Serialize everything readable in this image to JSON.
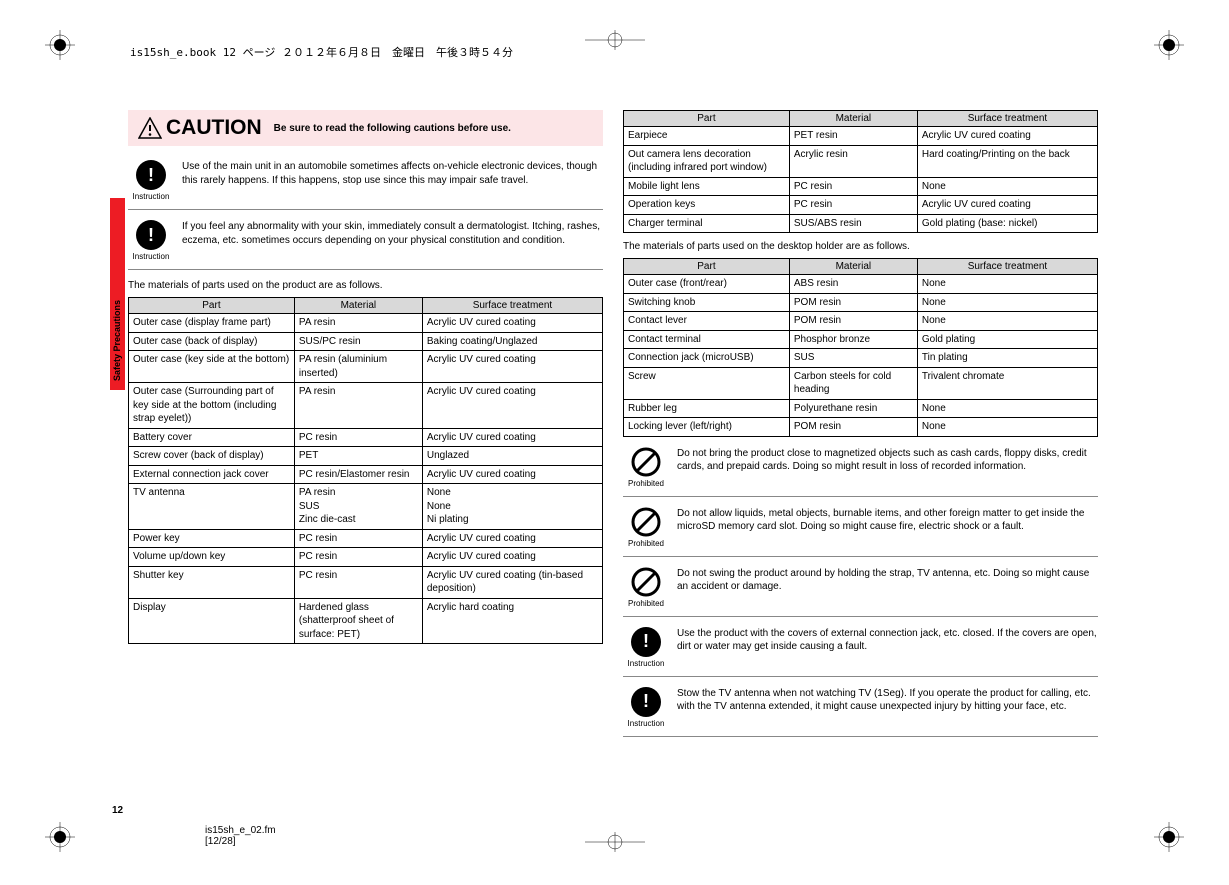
{
  "header_line": "is15sh_e.book  12 ページ  ２０１２年６月８日　金曜日　午後３時５４分",
  "side_tab_text": "Safety Precautions",
  "page_number": "12",
  "footer_file": "is15sh_e_02.fm",
  "footer_range": "[12/28]",
  "caution": {
    "title": "CAUTION",
    "text": "Be sure to read the following cautions before use."
  },
  "instructions_left": [
    {
      "icon": "instruction",
      "text": "Use of the main unit in an automobile sometimes affects on-vehicle electronic devices, though this rarely happens. If this happens, stop use since this may impair safe travel."
    },
    {
      "icon": "instruction",
      "text": "If you feel any abnormality with your skin, immediately consult a dermatologist. Itching, rashes, eczema, etc. sometimes occurs depending on your physical constitution and condition."
    }
  ],
  "intro_left": "The materials of parts used on the product are as follows.",
  "table1": {
    "headers": [
      "Part",
      "Material",
      "Surface treatment"
    ],
    "rows": [
      [
        "Outer case (display frame part)",
        "PA resin",
        "Acrylic UV cured coating"
      ],
      [
        "Outer case (back of display)",
        "SUS/PC resin",
        "Baking coating/Unglazed"
      ],
      [
        "Outer case (key side at the bottom)",
        "PA resin (aluminium inserted)",
        "Acrylic UV cured coating"
      ],
      [
        "Outer case (Surrounding part of key side at the bottom (including strap eyelet))",
        "PA resin",
        "Acrylic UV cured coating"
      ],
      [
        "Battery cover",
        "PC resin",
        "Acrylic UV cured coating"
      ],
      [
        "Screw cover (back of display)",
        "PET",
        "Unglazed"
      ],
      [
        "External connection jack cover",
        "PC resin/Elastomer resin",
        "Acrylic UV cured coating"
      ],
      [
        "TV antenna",
        "PA resin\nSUS\nZinc die-cast",
        "None\nNone\nNi plating"
      ],
      [
        "Power key",
        "PC resin",
        "Acrylic UV cured coating"
      ],
      [
        "Volume up/down key",
        "PC resin",
        "Acrylic UV cured coating"
      ],
      [
        "Shutter key",
        "PC resin",
        "Acrylic UV cured coating (tin-based deposition)"
      ],
      [
        "Display",
        "Hardened glass (shatterproof sheet of surface: PET)",
        "Acrylic hard coating"
      ]
    ]
  },
  "table2": {
    "headers": [
      "Part",
      "Material",
      "Surface treatment"
    ],
    "rows": [
      [
        "Earpiece",
        "PET resin",
        "Acrylic UV cured coating"
      ],
      [
        "Out camera lens decoration (including infrared port window)",
        "Acrylic resin",
        "Hard coating/Printing on the back"
      ],
      [
        "Mobile light lens",
        "PC resin",
        "None"
      ],
      [
        "Operation keys",
        "PC resin",
        "Acrylic UV cured coating"
      ],
      [
        "Charger terminal",
        "SUS/ABS resin",
        "Gold plating (base: nickel)"
      ]
    ]
  },
  "intro_right": "The materials of parts used on the desktop holder are as follows.",
  "table3": {
    "headers": [
      "Part",
      "Material",
      "Surface treatment"
    ],
    "rows": [
      [
        "Outer case (front/rear)",
        "ABS resin",
        "None"
      ],
      [
        "Switching knob",
        "POM resin",
        "None"
      ],
      [
        "Contact lever",
        "POM resin",
        "None"
      ],
      [
        "Contact terminal",
        "Phosphor bronze",
        "Gold plating"
      ],
      [
        "Connection jack (microUSB)",
        "SUS",
        "Tin plating"
      ],
      [
        "Screw",
        "Carbon steels for cold heading",
        "Trivalent chromate"
      ],
      [
        "Rubber leg",
        "Polyurethane resin",
        "None"
      ],
      [
        "Locking lever (left/right)",
        "POM resin",
        "None"
      ]
    ]
  },
  "instructions_right": [
    {
      "icon": "prohibited",
      "text": "Do not bring the product close to magnetized objects such as cash cards, floppy disks, credit cards, and prepaid cards. Doing so might result in loss of recorded information."
    },
    {
      "icon": "prohibited",
      "text": "Do not allow liquids, metal objects, burnable items, and other foreign matter to get inside the microSD memory card slot. Doing so might cause fire, electric shock or a fault."
    },
    {
      "icon": "prohibited",
      "text": "Do not swing the product around by holding the strap, TV antenna, etc. Doing so might cause an accident or damage."
    },
    {
      "icon": "instruction",
      "text": "Use the product with the covers of external connection jack, etc. closed. If the covers are open, dirt or water may get inside causing a fault."
    },
    {
      "icon": "instruction",
      "text": "Stow the TV antenna when not watching TV (1Seg). If you operate the product for calling, etc. with the TV antenna extended, it might cause unexpected injury by hitting your face, etc."
    }
  ],
  "icon_labels": {
    "instruction": "Instruction",
    "prohibited": "Prohibited"
  }
}
